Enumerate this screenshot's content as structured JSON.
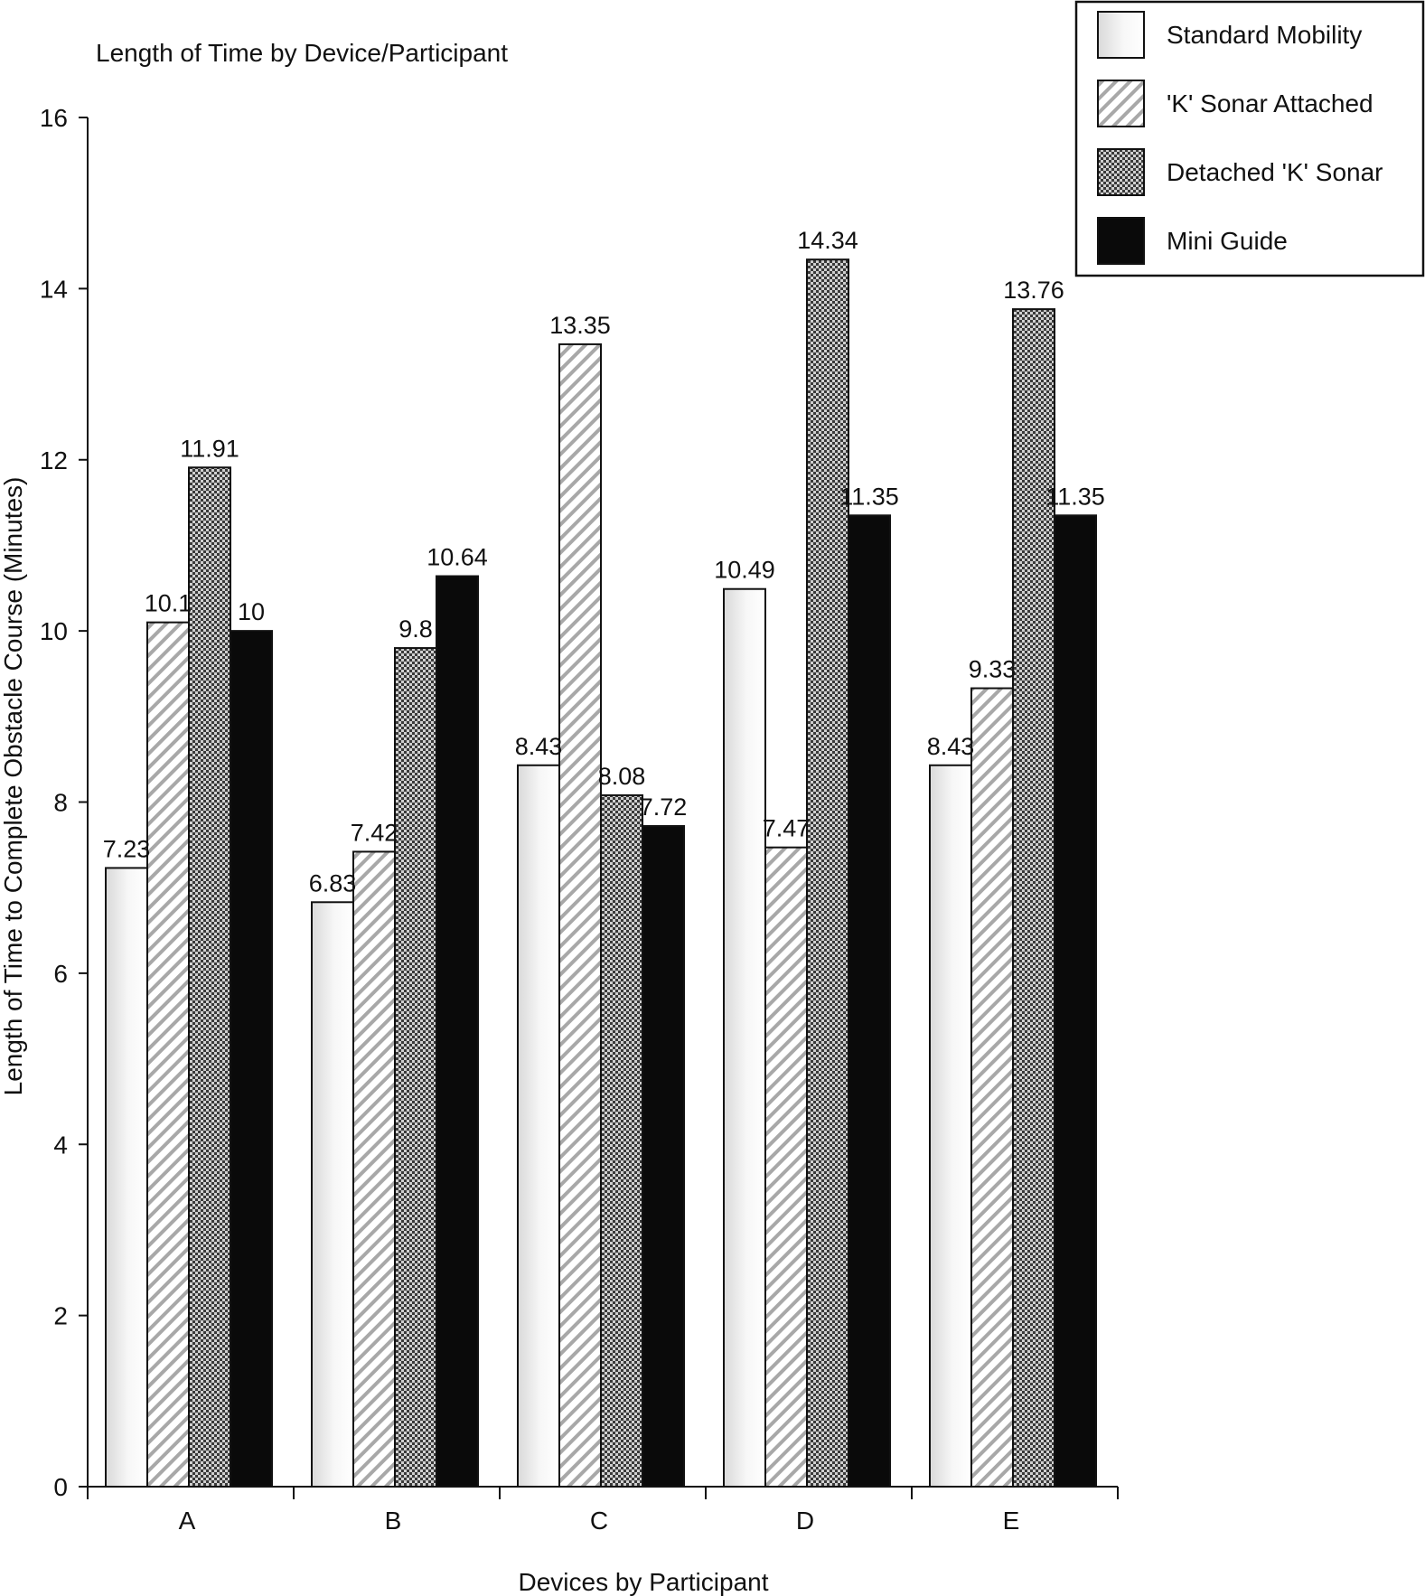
{
  "chart_data": {
    "type": "bar",
    "title": "Length of Time by Device/Participant",
    "xlabel": "Devices by Participant",
    "ylabel": "Length of Time to Complete Obstacle Course (Minutes)",
    "ylim": [
      0,
      16
    ],
    "yticks": [
      0,
      2,
      4,
      6,
      8,
      10,
      12,
      14,
      16
    ],
    "categories": [
      "A",
      "B",
      "C",
      "D",
      "E"
    ],
    "grid": false,
    "legend_position": "top-right",
    "series": [
      {
        "name": "Standard Mobility",
        "pattern": "gradient",
        "values": [
          7.23,
          6.83,
          8.43,
          10.49,
          8.43
        ],
        "labels": [
          "7.23",
          "6.83",
          "8.43",
          "10.49",
          "8.43"
        ]
      },
      {
        "name": "'K' Sonar Attached",
        "pattern": "diagonal-hatch",
        "values": [
          10.1,
          7.42,
          13.35,
          7.47,
          9.33
        ],
        "labels": [
          "10.1",
          "7.42",
          "13.35",
          "7.47",
          "9.33"
        ]
      },
      {
        "name": "Detached 'K' Sonar",
        "pattern": "checker",
        "values": [
          11.91,
          9.8,
          8.08,
          14.34,
          13.76
        ],
        "labels": [
          "11.91",
          "9.8",
          "8.08",
          "14.34",
          "13.76"
        ]
      },
      {
        "name": "Mini Guide",
        "pattern": "solid-black",
        "values": [
          10,
          10.64,
          7.72,
          11.35,
          11.35
        ],
        "labels": [
          "10",
          "10.64",
          "7.72",
          "11.35",
          "11.35"
        ]
      }
    ],
    "colors": {
      "axis": "#111111",
      "bar_stroke": "#111111",
      "solid": "#0a0a0a",
      "background": "#ffffff"
    }
  }
}
